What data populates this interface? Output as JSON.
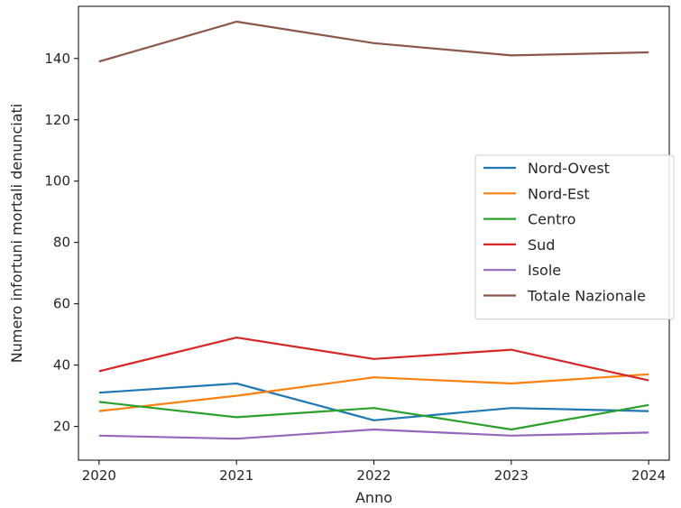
{
  "chart_data": {
    "type": "line",
    "title": "",
    "xlabel": "Anno",
    "ylabel": "Numero infortuni mortali denunciati",
    "x": [
      2020,
      2021,
      2022,
      2023,
      2024
    ],
    "xlim": [
      2019.85,
      2024.15
    ],
    "ylim": [
      9,
      157
    ],
    "yticks": [
      20,
      40,
      60,
      80,
      100,
      120,
      140
    ],
    "grid": false,
    "legend_position": "center-right",
    "series": [
      {
        "name": "Nord-Ovest",
        "color": "#1f77b4",
        "values": [
          31,
          34,
          22,
          26,
          25
        ]
      },
      {
        "name": "Nord-Est",
        "color": "#ff7f0e",
        "values": [
          25,
          30,
          36,
          34,
          37
        ]
      },
      {
        "name": "Centro",
        "color": "#2ca02c",
        "values": [
          28,
          23,
          26,
          19,
          27
        ]
      },
      {
        "name": "Sud",
        "color": "#d62728",
        "values": [
          38,
          49,
          42,
          45,
          35
        ]
      },
      {
        "name": "Isole",
        "color": "#9467bd",
        "values": [
          17,
          16,
          19,
          17,
          18
        ]
      },
      {
        "name": "Totale Nazionale",
        "color": "#8c564b",
        "values": [
          139,
          152,
          145,
          141,
          142
        ]
      }
    ]
  }
}
